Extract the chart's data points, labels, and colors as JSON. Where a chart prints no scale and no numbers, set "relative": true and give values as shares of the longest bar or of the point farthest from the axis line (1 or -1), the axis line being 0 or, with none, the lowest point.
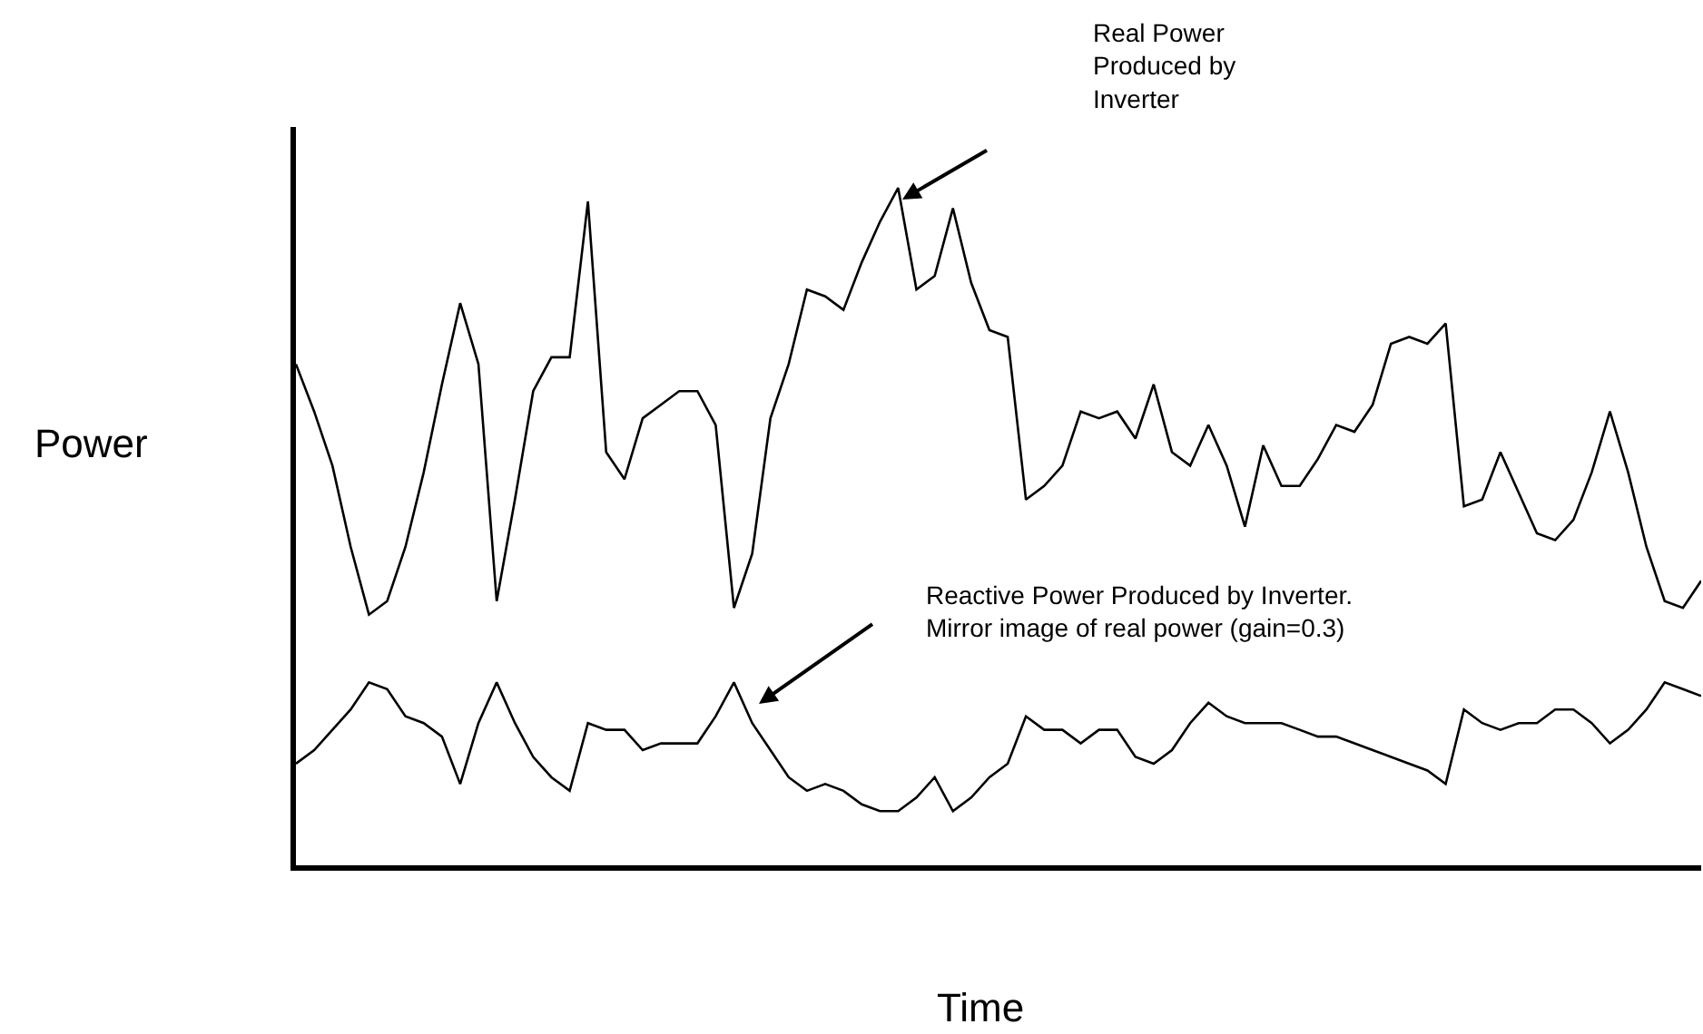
{
  "chart_data": {
    "type": "line",
    "relative": true,
    "xlabel": "Time",
    "ylabel": "Power",
    "categories": [
      null,
      null,
      null,
      null,
      null,
      null,
      null,
      null,
      null,
      null,
      null,
      null,
      null,
      null,
      null,
      null,
      null,
      null,
      null,
      null,
      null,
      null,
      null,
      null,
      null,
      null,
      null,
      null,
      null,
      null,
      null,
      null,
      null,
      null,
      null,
      null,
      null,
      null,
      null,
      null,
      null,
      null,
      null,
      null,
      null,
      null,
      null,
      null,
      null,
      null,
      null,
      null,
      null,
      null,
      null,
      null,
      null,
      null,
      null,
      null,
      null,
      null,
      null,
      null,
      null,
      null,
      null,
      null,
      null,
      null,
      null,
      null,
      null,
      null,
      null,
      null,
      null,
      null
    ],
    "series": [
      {
        "color": "#000000",
        "values": [
          0.74,
          0.67,
          0.59,
          0.47,
          0.37,
          0.39,
          0.47,
          0.58,
          0.71,
          0.83,
          0.74,
          0.39,
          0.54,
          0.7,
          0.75,
          0.75,
          0.98,
          0.61,
          0.57,
          0.66,
          0.68,
          0.7,
          0.7,
          0.65,
          0.38,
          0.46,
          0.66,
          0.74,
          0.85,
          0.84,
          0.82,
          0.89,
          0.95,
          1.0,
          0.85,
          0.87,
          0.97,
          0.86,
          0.79,
          0.78,
          0.54,
          0.56,
          0.59,
          0.67,
          0.66,
          0.67,
          0.63,
          0.71,
          0.61,
          0.59,
          0.65,
          0.59,
          0.5,
          0.62,
          0.56,
          0.56,
          0.6,
          0.65,
          0.64,
          0.68,
          0.77,
          0.78,
          0.77,
          0.8,
          0.53,
          0.54,
          0.61,
          0.55,
          0.49,
          0.48,
          0.51,
          0.58,
          0.67,
          0.58,
          0.47,
          0.39,
          0.38,
          0.42
        ]
      },
      {
        "color": "#000000",
        "values": [
          0.15,
          0.17,
          0.2,
          0.23,
          0.27,
          0.26,
          0.22,
          0.21,
          0.19,
          0.12,
          0.21,
          0.27,
          0.21,
          0.16,
          0.13,
          0.11,
          0.21,
          0.2,
          0.2,
          0.17,
          0.18,
          0.18,
          0.18,
          0.22,
          0.27,
          0.21,
          0.17,
          0.13,
          0.11,
          0.12,
          0.11,
          0.09,
          0.08,
          0.08,
          0.1,
          0.13,
          0.08,
          0.1,
          0.13,
          0.15,
          0.22,
          0.2,
          0.2,
          0.18,
          0.2,
          0.2,
          0.16,
          0.15,
          0.17,
          0.21,
          0.24,
          0.22,
          0.21,
          0.21,
          0.21,
          0.2,
          0.19,
          0.19,
          0.18,
          0.17,
          0.16,
          0.15,
          0.14,
          0.12,
          0.23,
          0.21,
          0.2,
          0.21,
          0.21,
          0.23,
          0.23,
          0.21,
          0.18,
          0.2,
          0.23,
          0.27,
          0.26,
          0.25
        ]
      }
    ],
    "annotations": [
      "Real Power Produced by Inverter",
      "Reactive Power Produced by Inverter. Mirror image of real power (gain=0.3)"
    ],
    "marker": "none",
    "line_style": "solid"
  }
}
